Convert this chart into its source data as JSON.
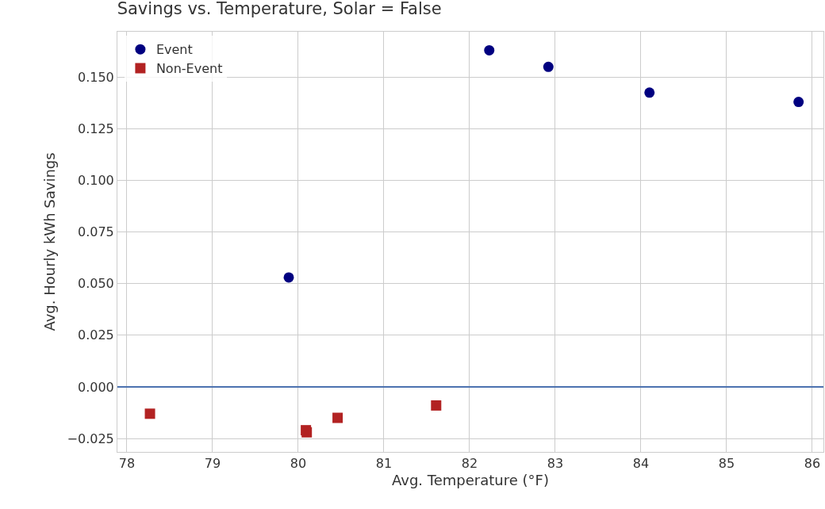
{
  "chart_data": {
    "type": "scatter",
    "title": "Savings vs. Temperature, Solar = False",
    "xlabel": "Avg. Temperature (°F)",
    "ylabel": "Avg. Hourly kWh Savings",
    "series": [
      {
        "name": "Event",
        "color": "#000080",
        "marker": "circle",
        "x": [
          79.89,
          82.23,
          82.92,
          84.1,
          85.84
        ],
        "values": [
          0.053,
          0.163,
          0.155,
          0.1425,
          0.138
        ]
      },
      {
        "name": "Non-Event",
        "color": "#b22222",
        "marker": "square",
        "x": [
          78.27,
          80.09,
          80.1,
          80.46,
          81.61
        ],
        "values": [
          -0.013,
          -0.021,
          -0.022,
          -0.015,
          -0.009
        ]
      }
    ],
    "xlim": [
      77.89,
      86.13
    ],
    "xticks": [
      78,
      79,
      80,
      81,
      82,
      83,
      84,
      85,
      86
    ],
    "ylim": [
      -0.0315,
      0.172
    ],
    "yticks": [
      {
        "value": -0.025,
        "label": "−0.025"
      },
      {
        "value": 0,
        "label": "0.000"
      },
      {
        "value": 0.025,
        "label": "0.025"
      },
      {
        "value": 0.05,
        "label": "0.050"
      },
      {
        "value": 0.075,
        "label": "0.075"
      },
      {
        "value": 0.1,
        "label": "0.100"
      },
      {
        "value": 0.125,
        "label": "0.125"
      },
      {
        "value": 0.15,
        "label": "0.150"
      }
    ],
    "ref_lines": [
      {
        "axis": "y",
        "value": 0,
        "color": "#4c72b0"
      }
    ],
    "grid": true,
    "legend": "top left"
  }
}
